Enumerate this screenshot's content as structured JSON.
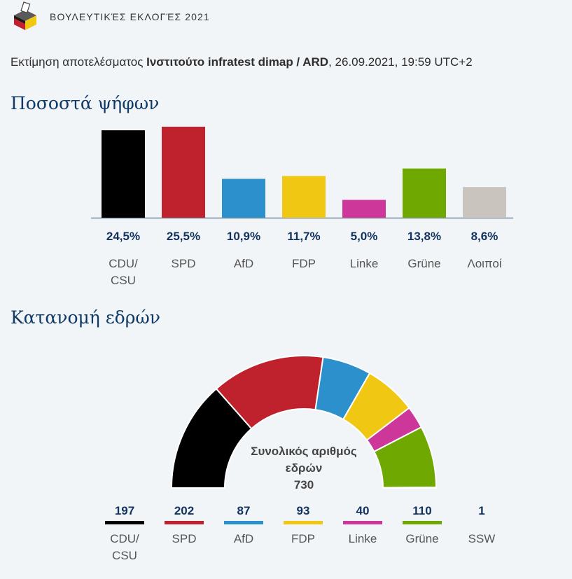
{
  "header": {
    "title": "ΒΟΥΛΕΥΤΙΚΈΣ ΕΚΛΟΓΈΣ 2021",
    "logo_icon": "ballot-box-germany-flag-icon"
  },
  "subtitle": {
    "prefix": "Εκτίμηση αποτελέσματος ",
    "source": "Ινστιτούτο infratest dimap / ARD",
    "suffix": ", 26.09.2021, 19:59 UTC+2"
  },
  "chart_data": [
    {
      "type": "bar",
      "title": "Ποσοστά ψήφων",
      "categories": [
        [
          "CDU/",
          "CSU"
        ],
        [
          "SPD"
        ],
        [
          "AfD"
        ],
        [
          "FDP"
        ],
        [
          "Linke"
        ],
        [
          "Grüne"
        ],
        [
          "Λοιποί"
        ]
      ],
      "values": [
        24.5,
        25.5,
        10.9,
        11.7,
        5.0,
        13.8,
        8.6
      ],
      "value_labels": [
        "24,5%",
        "25,5%",
        "10,9%",
        "11,7%",
        "5,0%",
        "13,8%",
        "8,6%"
      ],
      "colors": [
        "#000000",
        "#c0222d",
        "#2b90cc",
        "#f0c814",
        "#cc3799",
        "#6fa800",
        "#c9c5be"
      ],
      "ylim": [
        0,
        25.5
      ],
      "grid": false
    },
    {
      "type": "pie",
      "subtype": "parliament-semicircle",
      "title": "Κατανομή εδρών",
      "center_label": [
        "Συνολικός αριθμός",
        "εδρών",
        "730"
      ],
      "total": 730,
      "categories": [
        [
          "CDU/",
          "CSU"
        ],
        [
          "SPD"
        ],
        [
          "AfD"
        ],
        [
          "FDP"
        ],
        [
          "Linke"
        ],
        [
          "Grüne"
        ],
        [
          "SSW"
        ]
      ],
      "values": [
        197,
        202,
        87,
        93,
        40,
        110,
        1
      ],
      "colors": [
        "#000000",
        "#c0222d",
        "#2b90cc",
        "#f0c814",
        "#cc3799",
        "#6fa800",
        "#1e4d8c"
      ],
      "legend_show_swatch": [
        true,
        true,
        true,
        true,
        true,
        true,
        false
      ]
    }
  ]
}
